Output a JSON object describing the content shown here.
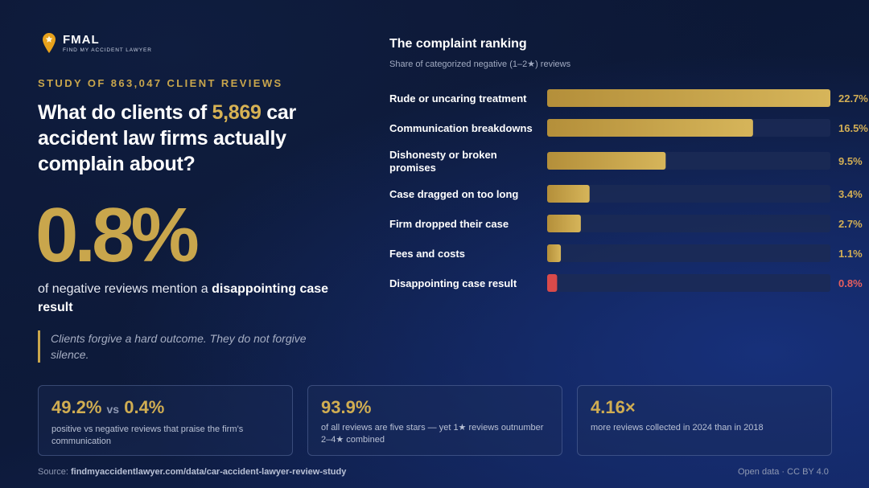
{
  "brand": {
    "name": "FMAL",
    "tagline": "FIND MY ACCIDENT LAWYER",
    "icon": "map-pin-star-icon"
  },
  "study_label": "STUDY OF 863,047 CLIENT REVIEWS",
  "headline": {
    "pre": "What do clients of ",
    "highlight": "5,869",
    "post": " car accident law firms actually complain about?"
  },
  "big_stat": "0.8%",
  "big_stat_caption": {
    "pre": "of negative reviews mention a ",
    "bold": "disappointing case result"
  },
  "quote": "Clients forgive a hard outcome. They do not forgive silence.",
  "colors": {
    "accent": "#c9a64c",
    "highlight_bar": "#d94a4a",
    "track": "#1b2a55"
  },
  "chart_data": {
    "type": "bar",
    "orientation": "horizontal",
    "title": "The complaint ranking",
    "subtitle": "Share of categorized negative (1–2★) reviews",
    "categories": [
      "Rude or uncaring treatment",
      "Communication breakdowns",
      "Dishonesty or broken promises",
      "Case dragged on too long",
      "Firm dropped their case",
      "Fees and costs",
      "Disappointing case result"
    ],
    "values": [
      22.7,
      16.5,
      9.5,
      3.4,
      2.7,
      1.1,
      0.8
    ],
    "value_labels": [
      "22.7%",
      "16.5%",
      "9.5%",
      "3.4%",
      "2.7%",
      "1.1%",
      "0.8%"
    ],
    "highlight_index": 6,
    "xlim": [
      0,
      22.7
    ]
  },
  "cards": [
    {
      "value": "49.2%",
      "vs": "vs",
      "value2": "0.4%",
      "desc": "positive vs negative reviews that praise the firm’s communication"
    },
    {
      "value": "93.9%",
      "desc": "of all reviews are five stars — yet 1★ reviews outnumber 2–4★ combined"
    },
    {
      "value": "4.16×",
      "desc": "more reviews collected in 2024 than in 2018"
    }
  ],
  "footer": {
    "source_label": "Source: ",
    "source_url": "findmyaccidentlawyer.com/data/car-accident-lawyer-review-study",
    "license": "Open data · CC BY 4.0"
  }
}
